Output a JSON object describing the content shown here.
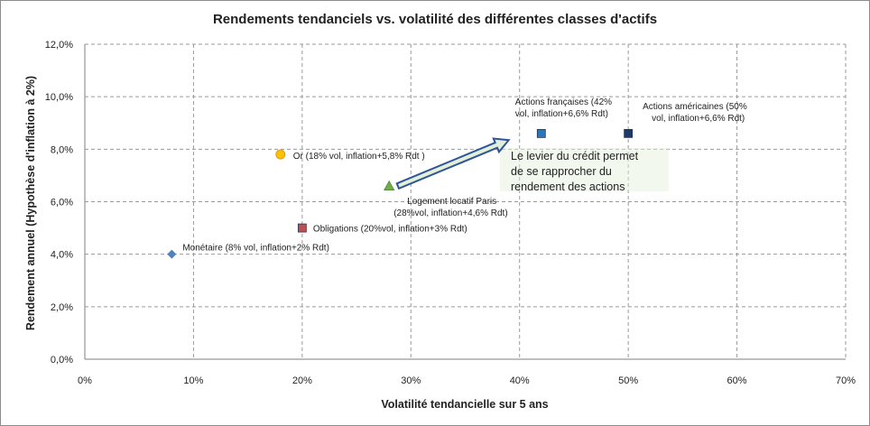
{
  "chart_data": {
    "type": "scatter",
    "title": "Rendements tendanciels vs. volatilité des différentes classes d'actifs",
    "xlabel": "Volatilité tendancielle sur 5 ans",
    "ylabel": "Rendement annuel (Hypothèse d'inflation à 2%)",
    "xlim": [
      0,
      70
    ],
    "ylim": [
      0,
      12
    ],
    "x_ticks": [
      0,
      10,
      20,
      30,
      40,
      50,
      60,
      70
    ],
    "x_tick_labels": [
      "0%",
      "10%",
      "20%",
      "30%",
      "40%",
      "50%",
      "60%",
      "70%"
    ],
    "y_ticks": [
      0,
      2,
      4,
      6,
      8,
      10,
      12
    ],
    "y_tick_labels": [
      "0,0%",
      "2,0%",
      "4,0%",
      "6,0%",
      "8,0%",
      "10,0%",
      "12,0%"
    ],
    "grid": true,
    "points": [
      {
        "label_lines": [
          "Monétaire (8% vol, inflation+2% Rdt)"
        ],
        "x": 8,
        "y": 4.0,
        "marker": "diamond",
        "color": "#4f81bd"
      },
      {
        "label_lines": [
          "Or (18% vol, inflation+5,8% Rdt )"
        ],
        "x": 18,
        "y": 7.8,
        "marker": "circle",
        "color": "#ffc000"
      },
      {
        "label_lines": [
          "Obligations (20%vol, inflation+3% Rdt)"
        ],
        "x": 20,
        "y": 5.0,
        "marker": "square",
        "color": "#c0504d"
      },
      {
        "label_lines": [
          "Logement locatif Paris",
          "(28%vol, inflation+4,6% Rdt)"
        ],
        "x": 28,
        "y": 6.6,
        "marker": "triangle",
        "color": "#70ad47"
      },
      {
        "label_lines": [
          "Actions françaises (42%",
          "vol, inflation+6,6% Rdt)"
        ],
        "x": 42,
        "y": 8.6,
        "marker": "square",
        "color": "#2e75b6"
      },
      {
        "label_lines": [
          "Actions américaines (50%",
          "vol, inflation+6,6% Rdt)"
        ],
        "x": 50,
        "y": 8.6,
        "marker": "square",
        "color": "#1f3864"
      }
    ],
    "annotation": {
      "text_lines": [
        "Le levier du crédit permet",
        "de se rapprocher du",
        "rendement des actions"
      ],
      "arrow_from": [
        28.8,
        6.6
      ],
      "arrow_to": [
        39,
        8.35
      ],
      "arrow_fill": "#e2efda",
      "arrow_stroke": "#2f5597"
    }
  }
}
